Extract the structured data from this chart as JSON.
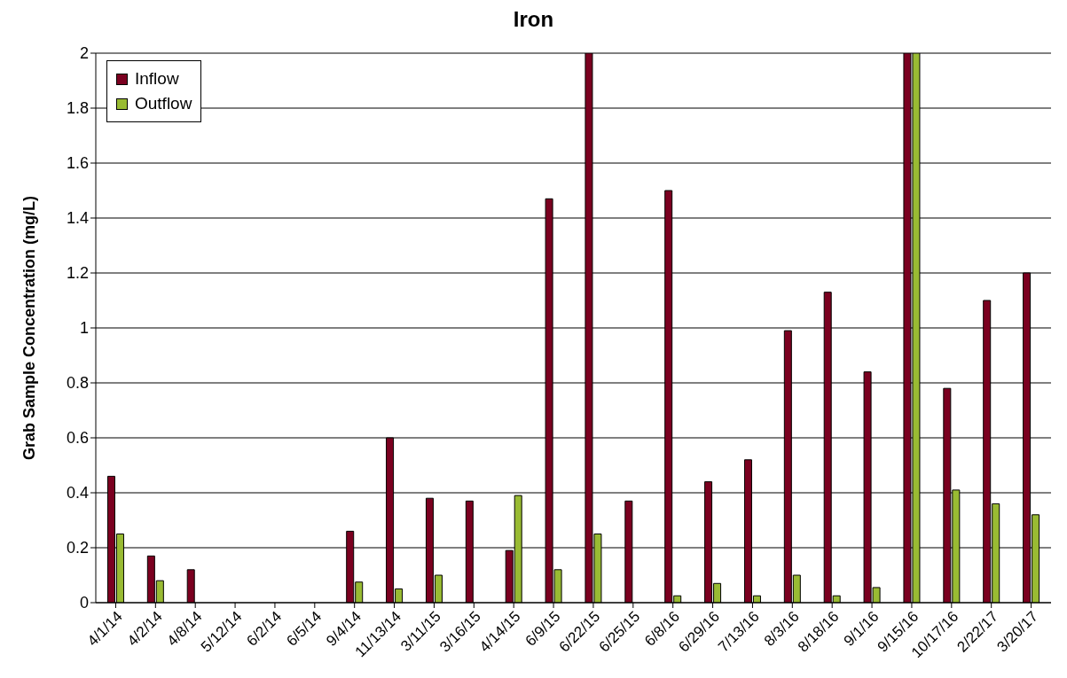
{
  "chart_data": {
    "type": "bar",
    "title": "Iron",
    "ylabel": "Grab Sample Concentration (mg/L)",
    "categories": [
      "4/1/14",
      "4/2/14",
      "4/8/14",
      "5/12/14",
      "6/2/14",
      "6/5/14",
      "9/4/14",
      "11/13/14",
      "3/11/15",
      "3/16/15",
      "4/14/15",
      "6/9/15",
      "6/22/15",
      "6/25/15",
      "6/8/16",
      "6/29/16",
      "7/13/16",
      "8/3/16",
      "8/18/16",
      "9/1/16",
      "9/15/16",
      "10/17/16",
      "2/22/17",
      "3/20/17"
    ],
    "series": [
      {
        "name": "Inflow",
        "color": "#7b0020",
        "values": [
          0.46,
          0.17,
          0.12,
          null,
          null,
          null,
          0.26,
          0.6,
          0.38,
          0.37,
          0.19,
          1.47,
          2.0,
          0.37,
          1.5,
          0.44,
          0.52,
          0.99,
          1.13,
          0.84,
          2.0,
          0.78,
          1.1,
          1.2
        ]
      },
      {
        "name": "Outflow",
        "color": "#99bb33",
        "values": [
          0.25,
          0.08,
          null,
          null,
          null,
          null,
          0.075,
          0.05,
          0.1,
          null,
          0.39,
          0.12,
          0.25,
          null,
          0.025,
          0.07,
          0.025,
          0.1,
          0.025,
          0.055,
          2.0,
          0.41,
          0.36,
          0.32
        ]
      }
    ],
    "ylim": [
      0,
      2
    ],
    "yticks": [
      0,
      0.2,
      0.4,
      0.6,
      0.8,
      1,
      1.2,
      1.4,
      1.6,
      1.8,
      2
    ],
    "grid": "y",
    "legend": "top left"
  }
}
